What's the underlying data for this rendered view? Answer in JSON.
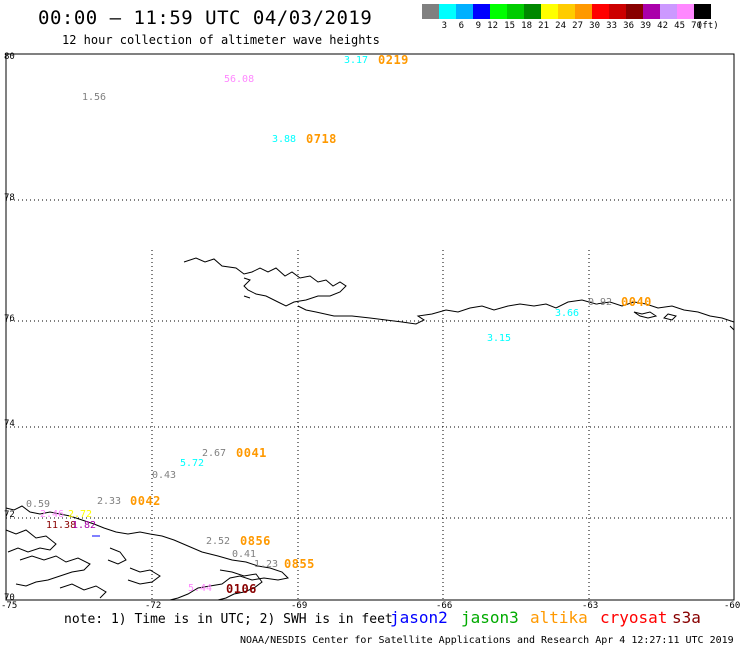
{
  "title": "00:00 – 11:59 UTC 04/03/2019",
  "subtitle": "12 hour collection of altimeter wave heights",
  "legend": {
    "unit": "(ft)",
    "bins": [
      {
        "label": "3",
        "color": "#808080"
      },
      {
        "label": "6",
        "color": "#00ffff"
      },
      {
        "label": "9",
        "color": "#00b0ff"
      },
      {
        "label": "12",
        "color": "#0000ff"
      },
      {
        "label": "15",
        "color": "#00ff00"
      },
      {
        "label": "18",
        "color": "#00cc00"
      },
      {
        "label": "21",
        "color": "#008800"
      },
      {
        "label": "24",
        "color": "#ffff00"
      },
      {
        "label": "27",
        "color": "#ffcc00"
      },
      {
        "label": "30",
        "color": "#ff9900"
      },
      {
        "label": "33",
        "color": "#ff0000"
      },
      {
        "label": "36",
        "color": "#cc0000"
      },
      {
        "label": "39",
        "color": "#880000"
      },
      {
        "label": "42",
        "color": "#aa00aa"
      },
      {
        "label": "45",
        "color": "#cc99ff"
      },
      {
        "label": "70",
        "color": "#ff88ff"
      },
      {
        "label": "",
        "color": "#000000"
      }
    ]
  },
  "lat_labels": [
    "80",
    "78",
    "76",
    "74",
    "72",
    "70"
  ],
  "lon_labels": [
    "-75",
    "-72",
    "-69",
    "-66",
    "-63",
    "-60"
  ],
  "wave_values": [
    {
      "text": "3.17",
      "color": "#00ffff"
    },
    {
      "text": "56.08",
      "color": "#ff88ff"
    },
    {
      "text": "1.56",
      "color": "#808080"
    },
    {
      "text": "3.88",
      "color": "#00ffff"
    },
    {
      "text": "0.92",
      "color": "#808080"
    },
    {
      "text": "3.66",
      "color": "#00ffff"
    },
    {
      "text": "3.15",
      "color": "#00ffff"
    },
    {
      "text": "2.67",
      "color": "#808080"
    },
    {
      "text": "5.72",
      "color": "#00ffff"
    },
    {
      "text": "0.43",
      "color": "#808080"
    },
    {
      "text": "0.59",
      "color": "#808080"
    },
    {
      "text": "2.33",
      "color": "#808080"
    },
    {
      "text": "2.46",
      "color": "#ff88ff"
    },
    {
      "text": "2.72",
      "color": "#ffff00"
    },
    {
      "text": "11.38",
      "color": "#880000"
    },
    {
      "text": "1.82",
      "color": "#aa00aa"
    },
    {
      "text": "2.52",
      "color": "#808080"
    },
    {
      "text": "0.41",
      "color": "#808080"
    },
    {
      "text": "1.23",
      "color": "#808080"
    },
    {
      "text": "5.44",
      "color": "#ff88ff"
    }
  ],
  "pass_times": [
    {
      "text": "0219"
    },
    {
      "text": "0718"
    },
    {
      "text": "0040"
    },
    {
      "text": "0041"
    },
    {
      "text": "0042"
    },
    {
      "text": "0856"
    },
    {
      "text": "0855"
    },
    {
      "text": "0106",
      "color": "#880000"
    }
  ],
  "note": "note: 1) Time is in UTC; 2) SWH is in feet",
  "missions": [
    {
      "name": "jason2",
      "color": "#0000ff"
    },
    {
      "name": "jason3",
      "color": "#00aa00"
    },
    {
      "name": "altika",
      "color": "#ff9900"
    },
    {
      "name": "cryosat",
      "color": "#ff0000"
    },
    {
      "name": "s3a",
      "color": "#880000"
    }
  ],
  "credit": "NOAA/NESDIS Center for Satellite Applications and Research    Apr  4 12:27:11 UTC 2019"
}
